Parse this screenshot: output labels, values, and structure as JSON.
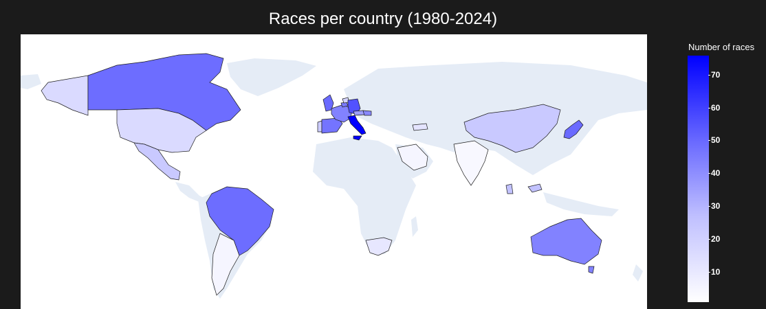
{
  "title": "Races per country (1980-2024)",
  "colorbar": {
    "title": "Number of races",
    "ticks": [
      "70",
      "60",
      "50",
      "40",
      "30",
      "20",
      "10"
    ],
    "min": 1,
    "max": 76,
    "colors": {
      "low": "#ffffff",
      "mid": "#8080ff",
      "high": "#0000ff"
    }
  },
  "map_data": {
    "type": "choropleth",
    "projection": "equirectangular",
    "land_color": "#e5ecf6",
    "background_color": "#ffffff",
    "countries": [
      {
        "name": "Italy",
        "races": 76
      },
      {
        "name": "Germany",
        "races": 52
      },
      {
        "name": "Japan",
        "races": 45
      },
      {
        "name": "Canada",
        "races": 44
      },
      {
        "name": "Brazil",
        "races": 44
      },
      {
        "name": "Spain",
        "races": 42
      },
      {
        "name": "France",
        "races": 38
      },
      {
        "name": "Australia",
        "races": 38
      },
      {
        "name": "Austria",
        "races": 30
      },
      {
        "name": "Hungary",
        "races": 36
      },
      {
        "name": "Belgium",
        "races": 40
      },
      {
        "name": "Netherlands",
        "races": 14
      },
      {
        "name": "United Kingdom",
        "races": 45
      },
      {
        "name": "Malaysia",
        "races": 19
      },
      {
        "name": "China",
        "races": 17
      },
      {
        "name": "Mexico",
        "races": 17
      },
      {
        "name": "Portugal",
        "races": 16
      },
      {
        "name": "United States",
        "races": 12
      },
      {
        "name": "Alaska",
        "races": 12
      },
      {
        "name": "South Africa",
        "races": 8
      },
      {
        "name": "Saudi Arabia",
        "races": 4
      },
      {
        "name": "Argentina",
        "races": 4
      },
      {
        "name": "Turkey",
        "races": 9
      },
      {
        "name": "India",
        "races": 3
      }
    ]
  }
}
